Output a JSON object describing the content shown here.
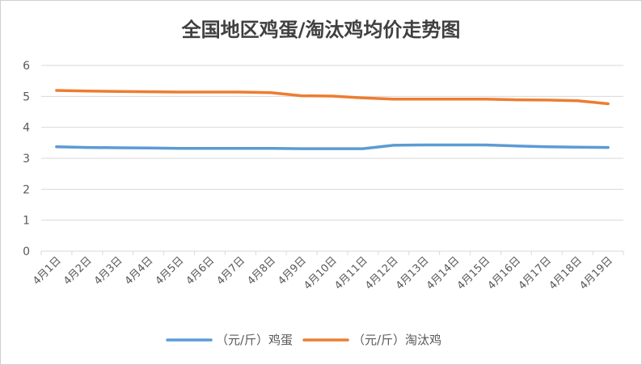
{
  "chart_data": {
    "type": "line",
    "title": "全国地区鸡蛋/淘汰鸡均价走势图",
    "xlabel": "",
    "ylabel": "",
    "categories": [
      "4月1日",
      "4月2日",
      "4月3日",
      "4月4日",
      "4月5日",
      "4月6日",
      "4月7日",
      "4月8日",
      "4月9日",
      "4月10日",
      "4月11日",
      "4月12日",
      "4月13日",
      "4月14日",
      "4月15日",
      "4月16日",
      "4月17日",
      "4月18日",
      "4月19日"
    ],
    "ylim": [
      0,
      6
    ],
    "yticks": [
      0,
      1,
      2,
      3,
      4,
      5,
      6
    ],
    "grid": true,
    "legend": "bottom",
    "series": [
      {
        "name": "（元/斤）鸡蛋",
        "color": "#5B9BD5",
        "values": [
          3.37,
          3.35,
          3.34,
          3.33,
          3.32,
          3.32,
          3.32,
          3.32,
          3.31,
          3.31,
          3.31,
          3.42,
          3.43,
          3.43,
          3.43,
          3.4,
          3.37,
          3.36,
          3.35
        ]
      },
      {
        "name": "（元/斤）淘汰鸡",
        "color": "#ED7D31",
        "values": [
          5.19,
          5.17,
          5.16,
          5.15,
          5.14,
          5.14,
          5.14,
          5.12,
          5.02,
          5.01,
          4.95,
          4.91,
          4.91,
          4.91,
          4.91,
          4.89,
          4.88,
          4.86,
          4.76
        ]
      }
    ]
  }
}
